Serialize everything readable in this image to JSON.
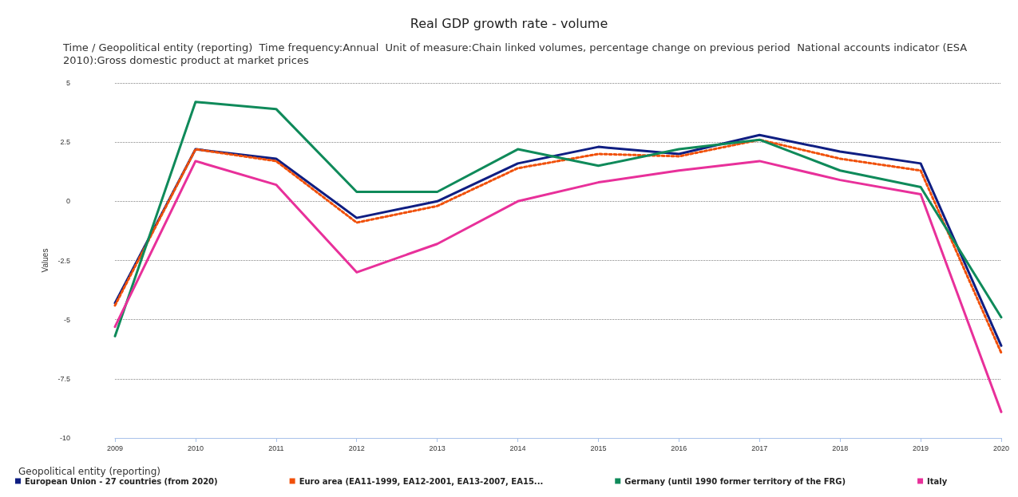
{
  "chart_data": {
    "type": "line",
    "title": "Real GDP growth rate - volume",
    "subtitle": "Time / Geopolitical entity (reporting)  Time frequency:Annual  Unit of measure:Chain linked volumes, percentage change on previous period  National accounts indicator (ESA 2010):Gross domestic product at market prices",
    "ylabel": "Values",
    "legend_title": "Geopolitical entity (reporting)",
    "categories": [
      "2009",
      "2010",
      "2011",
      "2012",
      "2013",
      "2014",
      "2015",
      "2016",
      "2017",
      "2018",
      "2019",
      "2020"
    ],
    "series": [
      {
        "name": "European Union - 27 countries (from 2020)",
        "color": "#0f1e82",
        "line_style": "solid",
        "values": [
          -4.3,
          2.2,
          1.8,
          -0.7,
          0,
          1.6,
          2.3,
          2.0,
          2.8,
          2.1,
          1.6,
          -6.1
        ]
      },
      {
        "name": "Euro area (EA11-1999, EA12-2001, EA13-2007, EA15...",
        "color": "#f0500a",
        "line_style": "dotted",
        "values": [
          -4.4,
          2.2,
          1.7,
          -0.9,
          -0.2,
          1.4,
          2.0,
          1.9,
          2.6,
          1.8,
          1.3,
          -6.4
        ]
      },
      {
        "name": "Germany (until 1990 former territory of the FRG)",
        "color": "#0f8a5a",
        "line_style": "solid",
        "values": [
          -5.7,
          4.2,
          3.9,
          0.4,
          0.4,
          2.2,
          1.5,
          2.2,
          2.6,
          1.3,
          0.6,
          -4.9
        ]
      },
      {
        "name": "Italy",
        "color": "#e8309a",
        "line_style": "solid",
        "values": [
          -5.3,
          1.7,
          0.7,
          -3.0,
          -1.8,
          0,
          0.8,
          1.3,
          1.7,
          0.9,
          0.3,
          -8.9
        ]
      }
    ],
    "ylim": [
      -10,
      5
    ],
    "yticks": [
      -10,
      {
        "value": -7.5,
        "label": "-7.5"
      },
      -5,
      {
        "value": -2.5,
        "label": "-2.5"
      },
      0,
      2.5,
      5
    ],
    "grid": "y",
    "legend": "bottom left",
    "marker": "none"
  }
}
